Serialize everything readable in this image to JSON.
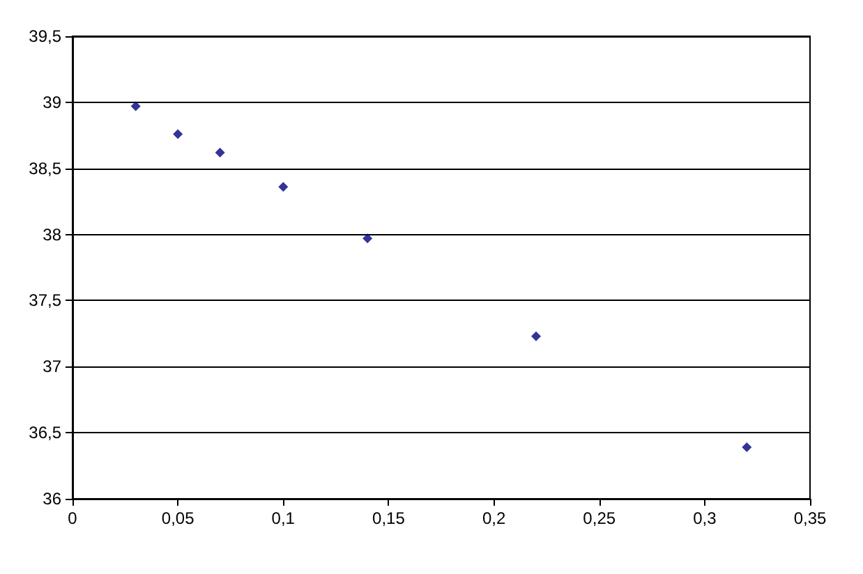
{
  "chart_data": {
    "type": "scatter",
    "x": [
      0.03,
      0.05,
      0.07,
      0.1,
      0.14,
      0.22,
      0.32
    ],
    "series": [
      {
        "color": "#000080",
        "values": [
          38.97,
          38.76,
          38.62,
          38.36,
          37.97,
          37.23,
          36.39
        ]
      }
    ],
    "xlim": [
      0,
      0.35
    ],
    "xticks": [
      0,
      {
        "value": 0.05,
        "label": "0,05"
      },
      {
        "value": 0.1,
        "label": "0,1"
      },
      {
        "value": 0.15,
        "label": "0,15"
      },
      {
        "value": 0.2,
        "label": "0,2"
      },
      {
        "value": 0.25,
        "label": "0,25"
      },
      {
        "value": 0.3,
        "label": "0,3"
      },
      {
        "value": 0.35,
        "label": "0,35"
      }
    ],
    "ylim": [
      36,
      39.5
    ],
    "yticks": [
      36,
      {
        "value": 36.5,
        "label": "36,5"
      },
      37,
      {
        "value": 37.5,
        "label": "37,5"
      },
      38,
      {
        "value": 38.5,
        "label": "38,5"
      },
      39,
      {
        "value": 39.5,
        "label": "39,5"
      }
    ],
    "grid": "y",
    "marker": "diamond"
  }
}
